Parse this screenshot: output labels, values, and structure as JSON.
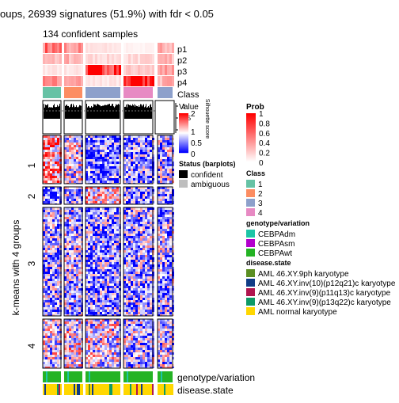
{
  "chart_data": {
    "type": "heatmap",
    "title": "oups, 26939 signatures (51.9%) with fdr < 0.05",
    "subtitle": "134 confident samples",
    "row_title": "k-means with 4 groups",
    "row_groups": [
      "1",
      "2",
      "3",
      "4"
    ],
    "column_groups": 4,
    "top_annotations": [
      "p1",
      "p2",
      "p3",
      "p4",
      "Class"
    ],
    "bottom_annotations": [
      "genotype/variation",
      "disease.state"
    ],
    "silhouette": {
      "label": "Silhouette score",
      "ticks": [
        "1",
        "0.5",
        "0"
      ]
    },
    "legends": {
      "prob": {
        "title": "Prob",
        "ticks": [
          "1",
          "0.8",
          "0.6",
          "0.4",
          "0.2",
          "0"
        ],
        "low": "#FFFFFF",
        "high": "#FF0000"
      },
      "value": {
        "title": "Value",
        "ticks": [
          "2",
          "1",
          "0"
        ],
        "colors": [
          "#0000FF",
          "#FFFFFF",
          "#FF0000"
        ]
      },
      "status": {
        "title": "Status (barplots)",
        "items": [
          {
            "label": "confident",
            "color": "#000000"
          },
          {
            "label": "ambiguous",
            "color": "#BEBEBE"
          }
        ]
      },
      "class": {
        "title": "Class",
        "items": [
          {
            "label": "1",
            "color": "#66C2A5"
          },
          {
            "label": "2",
            "color": "#FC8D62"
          },
          {
            "label": "3",
            "color": "#8DA0CB"
          },
          {
            "label": "4",
            "color": "#E78AC3"
          }
        ]
      },
      "genotype": {
        "title": "genotype/variation",
        "items": [
          {
            "label": "CEBPAdm",
            "color": "#1DC4A6"
          },
          {
            "label": "CEBPAsm",
            "color": "#B200CC"
          },
          {
            "label": "CEBPAwt",
            "color": "#24B324"
          }
        ]
      },
      "disease": {
        "title": "disease.state",
        "items": [
          {
            "label": "AML 46.XY.9ph karyotype",
            "color": "#5B8E22"
          },
          {
            "label": "AML 46.XY.inv(10)(p12q21)c karyotype",
            "color": "#103C86"
          },
          {
            "label": "AML 46.XY.inv(9)(p11q13)c karyotype",
            "color": "#B0154E"
          },
          {
            "label": "AML 46.XY.inv(9)(p13q22)c karyotype",
            "color": "#0E9A66"
          },
          {
            "label": "AML normal karyotype",
            "color": "#FFD700"
          }
        ]
      }
    }
  }
}
